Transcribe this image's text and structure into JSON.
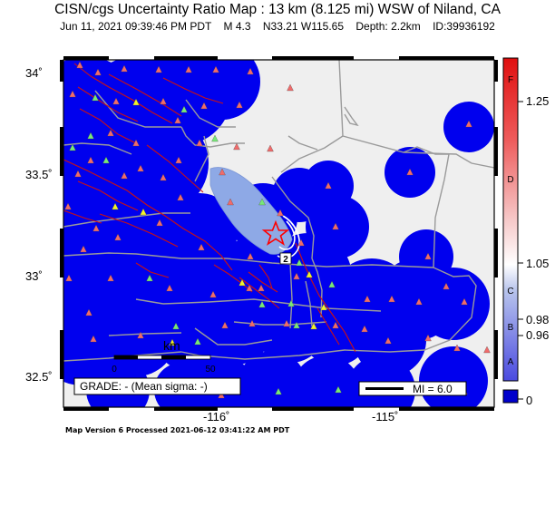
{
  "header": {
    "title": "CISN/cgs Uncertainty Ratio Map : 13 km (8.125 mi) WSW of Niland, CA",
    "date": "Jun 11, 2021 09:39:46 PM PDT",
    "magnitude": "M 4.3",
    "location": "N33.21 W115.65",
    "depth": "Depth: 2.2km",
    "event_id": "ID:39936192"
  },
  "axes": {
    "lat_labels": [
      "34˚",
      "33.5˚",
      "33˚",
      "32.5˚"
    ],
    "lon_labels": [
      "-116˚",
      "-115˚"
    ]
  },
  "map": {
    "scale_label": "km",
    "scale_ticks": [
      "0",
      "50"
    ],
    "grade_text": "GRADE: - (Mean sigma: -)",
    "mi_legend": "MI = 6.0",
    "contour_label": "2",
    "colors": {
      "background": "#efefef",
      "uncertainty_blue": "#0000ee",
      "lake": "#8ea9e6",
      "fault": "#cc1111",
      "road": "#9a9a9a",
      "epicenter": "#ff0000",
      "station_red": "#f06b6b",
      "station_green": "#78e878",
      "station_yellow": "#f2f22a"
    }
  },
  "colorbar": {
    "value_labels": [
      "1.25",
      "1.05",
      "0.98",
      "0.96",
      "0"
    ],
    "grade_letters": [
      "F",
      "D",
      "C",
      "B",
      "A"
    ]
  },
  "footer": {
    "text": "Map Version 6 Processed 2021-06-12 03:41:22 AM PDT"
  }
}
